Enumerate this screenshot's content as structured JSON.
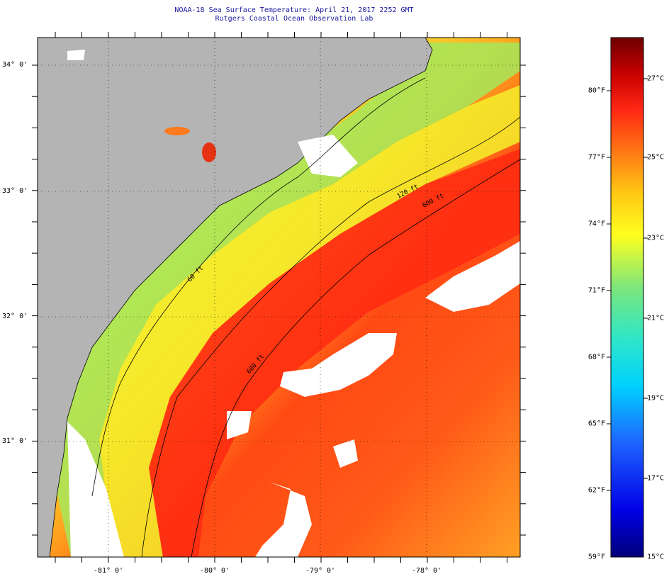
{
  "header": {
    "title": "NOAA-18 Sea Surface Temperature:  April 21, 2017 2252 GMT",
    "subtitle": "Rutgers Coastal Ocean Observation Lab"
  },
  "map": {
    "latitude_labels": [
      "34° 0'",
      "33° 0'",
      "32° 0'",
      "31° 0'"
    ],
    "longitude_labels": [
      "-81° 0'",
      "-80° 0'",
      "-79° 0'",
      "-78° 0'"
    ],
    "isobath_labels": [
      "120 ft",
      "600 ft",
      "600 ft",
      "60 ft"
    ],
    "colors": {
      "land": "#b4b4b4",
      "no_data": "#ffffff",
      "coastline": "#000000"
    }
  },
  "colorbar": {
    "fahrenheit_labels": [
      "80°F",
      "77°F",
      "74°F",
      "71°F",
      "68°F",
      "65°F",
      "62°F",
      "59°F"
    ],
    "celsius_labels": [
      "27°C",
      "25°C",
      "23°C",
      "21°C",
      "19°C",
      "17°C",
      "15°C"
    ],
    "range_celsius": [
      15,
      28.5
    ],
    "colors": [
      "#00007a",
      "#0000e6",
      "#1e64ff",
      "#00d2ff",
      "#2ee6c8",
      "#7ee67a",
      "#ffff1e",
      "#ffc814",
      "#ff7814",
      "#ff2814",
      "#c80000",
      "#6e0000"
    ]
  }
}
